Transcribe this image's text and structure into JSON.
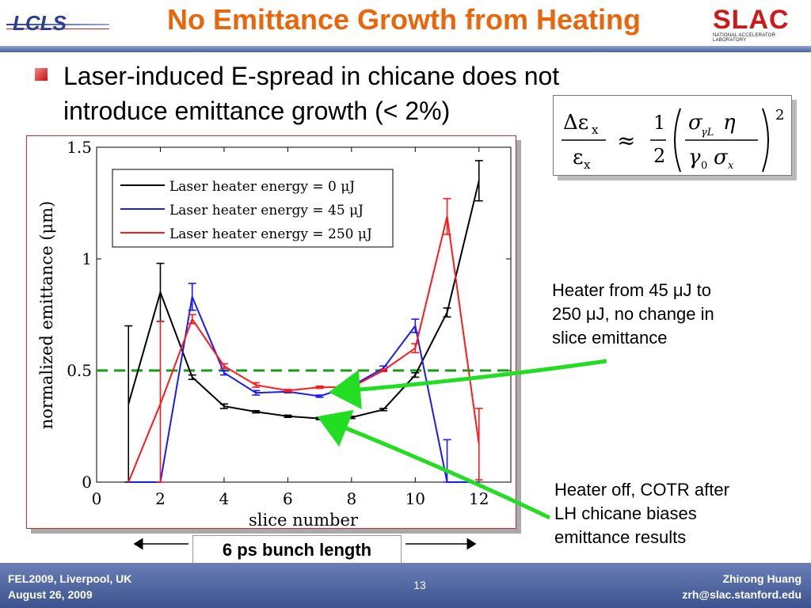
{
  "header": {
    "logo_left": "LCLS",
    "title": "No Emittance Growth from Heating",
    "logo_right": "SLAC",
    "logo_right_sub": "NATIONAL ACCELERATOR LABORATORY"
  },
  "bullet": {
    "line1": "Laser-induced E-spread in chicane does not",
    "line2": "introduce emittance growth (< 2%)"
  },
  "formula": {
    "lhs_num": "Δε",
    "lhs_num_sub": "x",
    "lhs_den": "ε",
    "lhs_den_sub": "x",
    "approx": "≈",
    "frac_num": "1",
    "frac_den": "2",
    "num_sigma": "σ",
    "num_sub": "γL",
    "eta": "η",
    "den_gamma": "γ",
    "den_gamma_sub": "0",
    "den_sigma": "σ",
    "den_sigma_sub": "x",
    "power": "2"
  },
  "annotations": {
    "heater_line1": "Heater from 45 μJ to",
    "heater_line2": "250 μJ, no change in",
    "heater_line3": "slice emittance",
    "off_line1": "Heater off, COTR after",
    "off_line2": "LH chicane biases",
    "off_line3": "emittance results"
  },
  "bunch_label": "6 ps bunch length",
  "footer": {
    "conf": "FEL2009, Liverpool, UK",
    "date": "August 26, 2009",
    "page": "13",
    "author": "Zhirong Huang",
    "email": "zrh@slac.stanford.edu"
  },
  "colors": {
    "title": "#e8660c",
    "footer": "#4d629a",
    "accent_green": "#22dd22",
    "series_black": "#000000",
    "series_blue": "#1a1aff",
    "series_red": "#ff1a1a",
    "reference_line": "#1a9a1a"
  },
  "chart_data": {
    "type": "line",
    "xlabel": "slice number",
    "ylabel": "normalized emittance (μm)",
    "xlim": [
      0,
      13
    ],
    "ylim": [
      0,
      1.5
    ],
    "xticks": [
      0,
      2,
      4,
      6,
      8,
      10,
      12
    ],
    "yticks": [
      0,
      0.5,
      1,
      1.5
    ],
    "ytick_labels": [
      "0",
      "0.5",
      "1",
      "1.5"
    ],
    "legend_position": "top-left",
    "reference_line": {
      "y": 0.5,
      "style": "dashed",
      "color": "#1a9a1a"
    },
    "x": [
      1,
      2,
      3,
      4,
      5,
      6,
      7,
      8,
      9,
      10,
      11,
      12
    ],
    "series": [
      {
        "name": "Laser heater energy = 0 μJ",
        "color": "#000000",
        "values": [
          0.35,
          0.85,
          0.47,
          0.34,
          0.315,
          0.295,
          0.285,
          0.29,
          0.325,
          0.48,
          0.76,
          1.35
        ],
        "errors": [
          0.35,
          0.13,
          0.01,
          0.01,
          0.005,
          0.005,
          0.005,
          0.005,
          0.005,
          0.01,
          0.02,
          0.09
        ]
      },
      {
        "name": "Laser heater energy = 45 μJ",
        "color": "#1a1aff",
        "values": [
          0,
          0,
          0.83,
          0.49,
          0.4,
          0.405,
          0.385,
          0.43,
          0.51,
          0.7,
          0,
          0
        ],
        "errors": [
          0,
          0,
          0.06,
          0.01,
          0.01,
          0.005,
          0.005,
          0.005,
          0.01,
          0.03,
          0.19,
          0
        ]
      },
      {
        "name": "Laser heater energy = 250 μJ",
        "color": "#ff1a1a",
        "values": [
          0,
          0.35,
          0.73,
          0.52,
          0.435,
          0.41,
          0.425,
          0.425,
          0.5,
          0.6,
          1.19,
          0.17
        ],
        "errors": [
          0,
          0.37,
          0.02,
          0.01,
          0.01,
          0.005,
          0.005,
          0.005,
          0.005,
          0.02,
          0.08,
          0.16
        ]
      }
    ]
  }
}
